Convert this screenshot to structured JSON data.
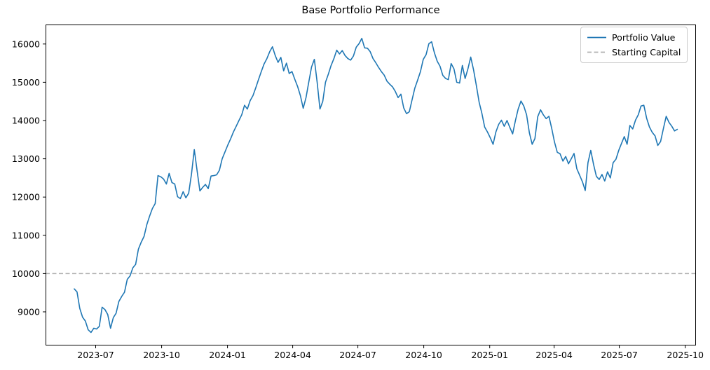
{
  "title": "Base Portfolio Performance",
  "legend": {
    "position": "upper right",
    "items": [
      {
        "label": "Portfolio Value",
        "color": "#1f77b4",
        "line_style": "solid"
      },
      {
        "label": "Starting Capital",
        "color": "#b0b0b0",
        "line_style": "dashed"
      }
    ]
  },
  "colors": {
    "portfolio_line": "#1f77b4",
    "starting_capital_line": "#b0b0b0",
    "axes": "#000000",
    "legend_border": "#cccccc",
    "background": "#ffffff"
  },
  "chart_data": {
    "type": "line",
    "title": "Base Portfolio Performance",
    "xlabel": "",
    "ylabel": "",
    "grid": false,
    "legend_position": "upper right",
    "xlim": [
      "2023-04-22",
      "2025-10-16"
    ],
    "ylim": [
      8120,
      16510
    ],
    "yticks": [
      9000,
      10000,
      11000,
      12000,
      13000,
      14000,
      15000,
      16000
    ],
    "xticks": [
      {
        "date": "2023-07-01",
        "label": "2023-07"
      },
      {
        "date": "2023-10-01",
        "label": "2023-10"
      },
      {
        "date": "2024-01-01",
        "label": "2024-01"
      },
      {
        "date": "2024-04-01",
        "label": "2024-04"
      },
      {
        "date": "2024-07-01",
        "label": "2024-07"
      },
      {
        "date": "2024-10-01",
        "label": "2024-10"
      },
      {
        "date": "2025-01-01",
        "label": "2025-01"
      },
      {
        "date": "2025-04-01",
        "label": "2025-04"
      },
      {
        "date": "2025-07-01",
        "label": "2025-07"
      },
      {
        "date": "2025-10-01",
        "label": "2025-10"
      }
    ],
    "starting_capital": 10000,
    "series": [
      {
        "name": "Portfolio Value",
        "color": "#1f77b4",
        "line_style": "solid",
        "start_date": "2023-06-01",
        "end_date": "2025-09-20",
        "note": "values evenly spaced in time between start_date and end_date",
        "values": [
          9600,
          9520,
          9090,
          8860,
          8760,
          8530,
          8460,
          8570,
          8550,
          8620,
          9120,
          9060,
          8930,
          8570,
          8850,
          8960,
          9270,
          9400,
          9510,
          9850,
          9940,
          10150,
          10240,
          10640,
          10820,
          10970,
          11280,
          11500,
          11700,
          11830,
          12560,
          12530,
          12470,
          12340,
          12620,
          12380,
          12340,
          12010,
          11960,
          12140,
          11980,
          12100,
          12600,
          13240,
          12690,
          12160,
          12250,
          12330,
          12220,
          12550,
          12560,
          12580,
          12700,
          13000,
          13180,
          13360,
          13520,
          13700,
          13850,
          14000,
          14150,
          14400,
          14300,
          14520,
          14650,
          14850,
          15070,
          15280,
          15480,
          15620,
          15800,
          15930,
          15700,
          15520,
          15650,
          15300,
          15500,
          15230,
          15280,
          15080,
          14890,
          14650,
          14320,
          14600,
          15000,
          15400,
          15600,
          15000,
          14300,
          14500,
          15000,
          15210,
          15440,
          15620,
          15840,
          15740,
          15830,
          15700,
          15620,
          15580,
          15690,
          15920,
          16010,
          16150,
          15900,
          15890,
          15800,
          15620,
          15510,
          15390,
          15280,
          15190,
          15030,
          14950,
          14880,
          14760,
          14600,
          14690,
          14330,
          14180,
          14230,
          14540,
          14850,
          15060,
          15280,
          15600,
          15720,
          16010,
          16060,
          15770,
          15550,
          15420,
          15180,
          15100,
          15070,
          15490,
          15350,
          15000,
          14980,
          15440,
          15100,
          15350,
          15660,
          15330,
          14920,
          14480,
          14190,
          13830,
          13700,
          13550,
          13380,
          13700,
          13900,
          14010,
          13850,
          14000,
          13820,
          13650,
          14000,
          14300,
          14510,
          14380,
          14150,
          13680,
          13380,
          13530,
          14100,
          14280,
          14150,
          14050,
          14110,
          13800,
          13440,
          13170,
          13130,
          12940,
          13060,
          12870,
          13000,
          13140,
          12740,
          12570,
          12400,
          12170,
          12900,
          13220,
          12850,
          12540,
          12460,
          12590,
          12420,
          12660,
          12500,
          12900,
          12990,
          13220,
          13400,
          13580,
          13380,
          13870,
          13780,
          14010,
          14150,
          14380,
          14400,
          14060,
          13830,
          13690,
          13600,
          13350,
          13450,
          13790,
          14110,
          13950,
          13850,
          13730,
          13770
        ]
      },
      {
        "name": "Starting Capital",
        "color": "#b0b0b0",
        "line_style": "dashed",
        "value": 10000
      }
    ]
  }
}
